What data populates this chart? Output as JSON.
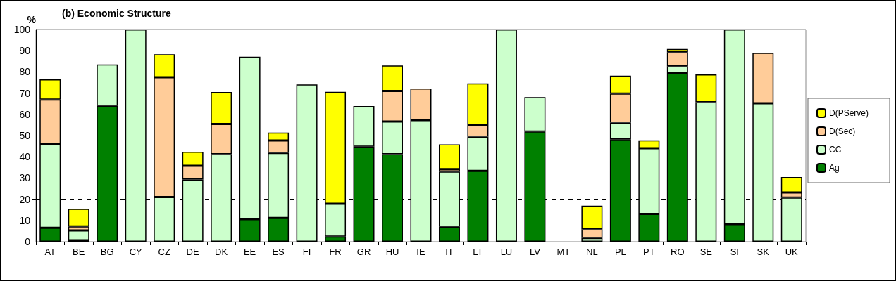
{
  "chart_data": {
    "type": "bar",
    "title": "(b) Economic Structure",
    "ylabel": "%",
    "categories": [
      "AT",
      "BE",
      "BG",
      "CY",
      "CZ",
      "DE",
      "DK",
      "EE",
      "ES",
      "FI",
      "FR",
      "GR",
      "HU",
      "IE",
      "IT",
      "LT",
      "LU",
      "LV",
      "MT",
      "NL",
      "PL",
      "PT",
      "RO",
      "SE",
      "SI",
      "SK",
      "UK"
    ],
    "series": [
      {
        "name": "Ag",
        "color": "#008000",
        "values": [
          6.5,
          0.7,
          64,
          null,
          null,
          null,
          null,
          10.6,
          11.2,
          null,
          2.4,
          44.8,
          41.2,
          null,
          7,
          33.4,
          null,
          51.9,
          null,
          null,
          48.3,
          13.1,
          79.5,
          null,
          8.3,
          null,
          null
        ]
      },
      {
        "name": "CC",
        "color": "#ccffcc",
        "values": [
          39.5,
          4.6,
          19.5,
          100,
          21,
          29.3,
          41.2,
          76.6,
          30.6,
          74.1,
          15.5,
          19.1,
          15.4,
          57.3,
          26,
          16.1,
          100,
          16.2,
          null,
          1.7,
          7.8,
          30.9,
          3.2,
          65.7,
          91.7,
          65.2,
          20.8
        ]
      },
      {
        "name": "D(Sec)",
        "color": "#ffcc99",
        "values": [
          21,
          1.9,
          null,
          null,
          56.5,
          6.5,
          14.3,
          null,
          5.9,
          null,
          null,
          null,
          14.4,
          14.9,
          1.2,
          5.5,
          null,
          null,
          null,
          4.1,
          13.7,
          null,
          6.6,
          null,
          null,
          23.8,
          2.4
        ]
      },
      {
        "name": "D(PServe)",
        "color": "#ffff00",
        "values": [
          9.5,
          8.3,
          null,
          null,
          10.8,
          6.6,
          15,
          null,
          3.7,
          null,
          52.7,
          null,
          12,
          null,
          11.7,
          19.6,
          null,
          null,
          null,
          11.2,
          8.4,
          3.8,
          1.5,
          13.1,
          null,
          null,
          7.3
        ]
      }
    ],
    "stacked": true,
    "ylim": [
      0,
      100
    ],
    "yticks": [
      0,
      10,
      20,
      30,
      40,
      50,
      60,
      70,
      80,
      90,
      100
    ],
    "grid": "y",
    "legend": "right"
  }
}
